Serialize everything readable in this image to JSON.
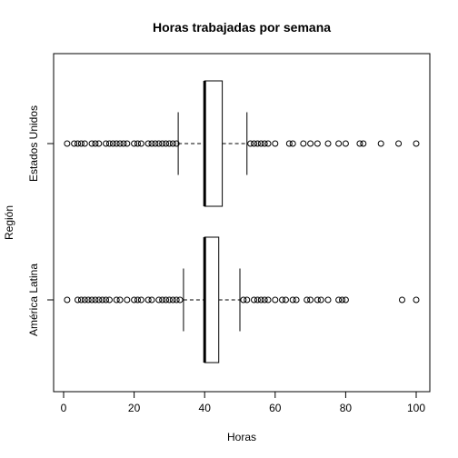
{
  "chart_data": {
    "type": "boxplot",
    "orientation": "horizontal",
    "title": "Horas trabajadas por semana",
    "xlabel": "Horas",
    "ylabel": "Región",
    "xlim": [
      0,
      102
    ],
    "x_ticks": [
      0,
      20,
      40,
      60,
      80,
      100
    ],
    "grid": false,
    "legend": "none",
    "series": [
      {
        "category": "América Latina",
        "whisker_low": 34,
        "q1": 40,
        "median": 40,
        "q3": 44,
        "whisker_high": 50,
        "outliers": [
          1,
          4,
          5,
          6,
          7,
          8,
          9,
          10,
          11,
          12,
          13,
          15,
          16,
          18,
          20,
          21,
          22,
          24,
          25,
          27,
          28,
          29,
          30,
          31,
          32,
          33,
          51,
          52,
          54,
          55,
          56,
          57,
          58,
          60,
          62,
          63,
          65,
          66,
          69,
          70,
          72,
          73,
          75,
          78,
          79,
          80,
          96,
          100
        ]
      },
      {
        "category": "Estados Unidos",
        "whisker_low": 32.5,
        "q1": 40,
        "median": 40,
        "q3": 45,
        "whisker_high": 52,
        "outliers": [
          1,
          3,
          4,
          5,
          6,
          8,
          9,
          10,
          12,
          13,
          14,
          15,
          16,
          17,
          18,
          20,
          21,
          22,
          24,
          25,
          26,
          27,
          28,
          29,
          30,
          31,
          32,
          53,
          54,
          55,
          56,
          57,
          58,
          60,
          64,
          65,
          68,
          70,
          72,
          75,
          78,
          80,
          84,
          85,
          90,
          95,
          100
        ]
      }
    ]
  }
}
